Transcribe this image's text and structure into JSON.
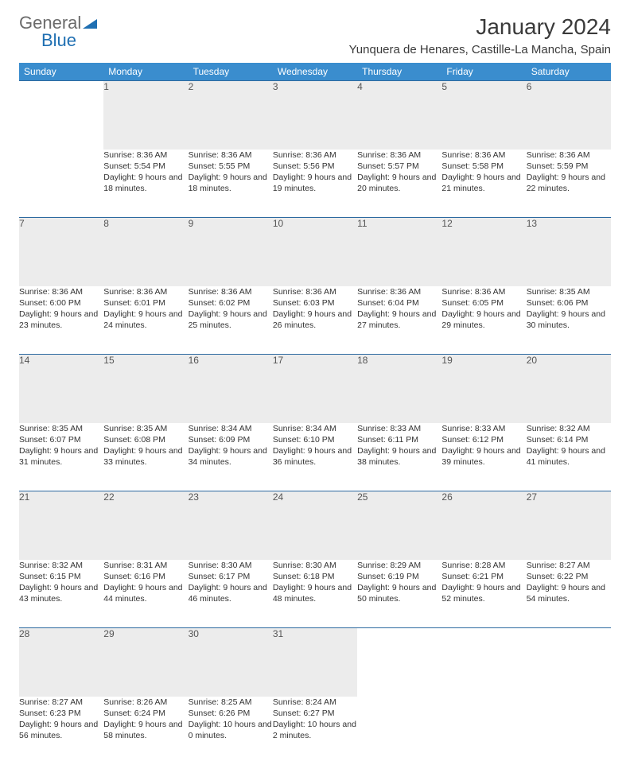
{
  "brand": {
    "part1": "General",
    "part2": "Blue"
  },
  "title": "January 2024",
  "location": "Yunquera de Henares, Castille-La Mancha, Spain",
  "colors": {
    "header_bg": "#3a8dce",
    "header_text": "#ffffff",
    "daynum_bg": "#ececec",
    "row_divider": "#2d6aa0",
    "logo_gray": "#6b6b6b",
    "logo_blue": "#1f6fb2"
  },
  "weekdays": [
    "Sunday",
    "Monday",
    "Tuesday",
    "Wednesday",
    "Thursday",
    "Friday",
    "Saturday"
  ],
  "weeks": [
    [
      null,
      {
        "n": "1",
        "sr": "8:36 AM",
        "ss": "5:54 PM",
        "dl": "9 hours and 18 minutes."
      },
      {
        "n": "2",
        "sr": "8:36 AM",
        "ss": "5:55 PM",
        "dl": "9 hours and 18 minutes."
      },
      {
        "n": "3",
        "sr": "8:36 AM",
        "ss": "5:56 PM",
        "dl": "9 hours and 19 minutes."
      },
      {
        "n": "4",
        "sr": "8:36 AM",
        "ss": "5:57 PM",
        "dl": "9 hours and 20 minutes."
      },
      {
        "n": "5",
        "sr": "8:36 AM",
        "ss": "5:58 PM",
        "dl": "9 hours and 21 minutes."
      },
      {
        "n": "6",
        "sr": "8:36 AM",
        "ss": "5:59 PM",
        "dl": "9 hours and 22 minutes."
      }
    ],
    [
      {
        "n": "7",
        "sr": "8:36 AM",
        "ss": "6:00 PM",
        "dl": "9 hours and 23 minutes."
      },
      {
        "n": "8",
        "sr": "8:36 AM",
        "ss": "6:01 PM",
        "dl": "9 hours and 24 minutes."
      },
      {
        "n": "9",
        "sr": "8:36 AM",
        "ss": "6:02 PM",
        "dl": "9 hours and 25 minutes."
      },
      {
        "n": "10",
        "sr": "8:36 AM",
        "ss": "6:03 PM",
        "dl": "9 hours and 26 minutes."
      },
      {
        "n": "11",
        "sr": "8:36 AM",
        "ss": "6:04 PM",
        "dl": "9 hours and 27 minutes."
      },
      {
        "n": "12",
        "sr": "8:36 AM",
        "ss": "6:05 PM",
        "dl": "9 hours and 29 minutes."
      },
      {
        "n": "13",
        "sr": "8:35 AM",
        "ss": "6:06 PM",
        "dl": "9 hours and 30 minutes."
      }
    ],
    [
      {
        "n": "14",
        "sr": "8:35 AM",
        "ss": "6:07 PM",
        "dl": "9 hours and 31 minutes."
      },
      {
        "n": "15",
        "sr": "8:35 AM",
        "ss": "6:08 PM",
        "dl": "9 hours and 33 minutes."
      },
      {
        "n": "16",
        "sr": "8:34 AM",
        "ss": "6:09 PM",
        "dl": "9 hours and 34 minutes."
      },
      {
        "n": "17",
        "sr": "8:34 AM",
        "ss": "6:10 PM",
        "dl": "9 hours and 36 minutes."
      },
      {
        "n": "18",
        "sr": "8:33 AM",
        "ss": "6:11 PM",
        "dl": "9 hours and 38 minutes."
      },
      {
        "n": "19",
        "sr": "8:33 AM",
        "ss": "6:12 PM",
        "dl": "9 hours and 39 minutes."
      },
      {
        "n": "20",
        "sr": "8:32 AM",
        "ss": "6:14 PM",
        "dl": "9 hours and 41 minutes."
      }
    ],
    [
      {
        "n": "21",
        "sr": "8:32 AM",
        "ss": "6:15 PM",
        "dl": "9 hours and 43 minutes."
      },
      {
        "n": "22",
        "sr": "8:31 AM",
        "ss": "6:16 PM",
        "dl": "9 hours and 44 minutes."
      },
      {
        "n": "23",
        "sr": "8:30 AM",
        "ss": "6:17 PM",
        "dl": "9 hours and 46 minutes."
      },
      {
        "n": "24",
        "sr": "8:30 AM",
        "ss": "6:18 PM",
        "dl": "9 hours and 48 minutes."
      },
      {
        "n": "25",
        "sr": "8:29 AM",
        "ss": "6:19 PM",
        "dl": "9 hours and 50 minutes."
      },
      {
        "n": "26",
        "sr": "8:28 AM",
        "ss": "6:21 PM",
        "dl": "9 hours and 52 minutes."
      },
      {
        "n": "27",
        "sr": "8:27 AM",
        "ss": "6:22 PM",
        "dl": "9 hours and 54 minutes."
      }
    ],
    [
      {
        "n": "28",
        "sr": "8:27 AM",
        "ss": "6:23 PM",
        "dl": "9 hours and 56 minutes."
      },
      {
        "n": "29",
        "sr": "8:26 AM",
        "ss": "6:24 PM",
        "dl": "9 hours and 58 minutes."
      },
      {
        "n": "30",
        "sr": "8:25 AM",
        "ss": "6:26 PM",
        "dl": "10 hours and 0 minutes."
      },
      {
        "n": "31",
        "sr": "8:24 AM",
        "ss": "6:27 PM",
        "dl": "10 hours and 2 minutes."
      },
      null,
      null,
      null
    ]
  ]
}
